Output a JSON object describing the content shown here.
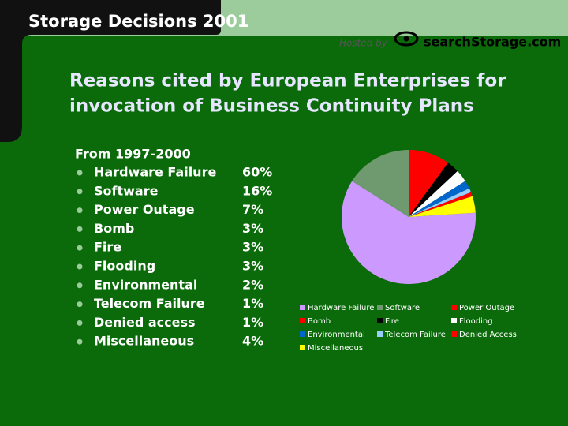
{
  "header": {
    "brand": "Storage Decisions 2001",
    "hosted": "Hosted by",
    "sponsor": "searchStorage.com"
  },
  "chart_data": {
    "type": "pie",
    "title": [
      "Reasons cited by European Enterprises for",
      "invocation of Business Continuity Plans"
    ],
    "subtitle": "From 1997-2000",
    "categories": [
      "Hardware Failure",
      "Software",
      "Power Outage",
      "Bomb",
      "Fire",
      "Flooding",
      "Environmental",
      "Telecom Failure",
      "Denied access",
      "Miscellaneous"
    ],
    "legend_labels": [
      "Hardware Failure",
      "Software",
      "Power Outage",
      "Bomb",
      "Fire",
      "Flooding",
      "Environmental",
      "Telecom Failure",
      "Denied Access",
      "Miscellaneous"
    ],
    "values": [
      60,
      16,
      7,
      3,
      3,
      3,
      2,
      1,
      1,
      4
    ],
    "value_labels": [
      "60%",
      "16%",
      "7%",
      "3%",
      "3%",
      "3%",
      "2%",
      "1%",
      "1%",
      "4%"
    ],
    "colors": [
      "#cc99ff",
      "#6f9a6f",
      "#ff0000",
      "#ff0000",
      "#000000",
      "#ffffff",
      "#0066cc",
      "#99ccff",
      "#ff0000",
      "#ffff00"
    ]
  }
}
